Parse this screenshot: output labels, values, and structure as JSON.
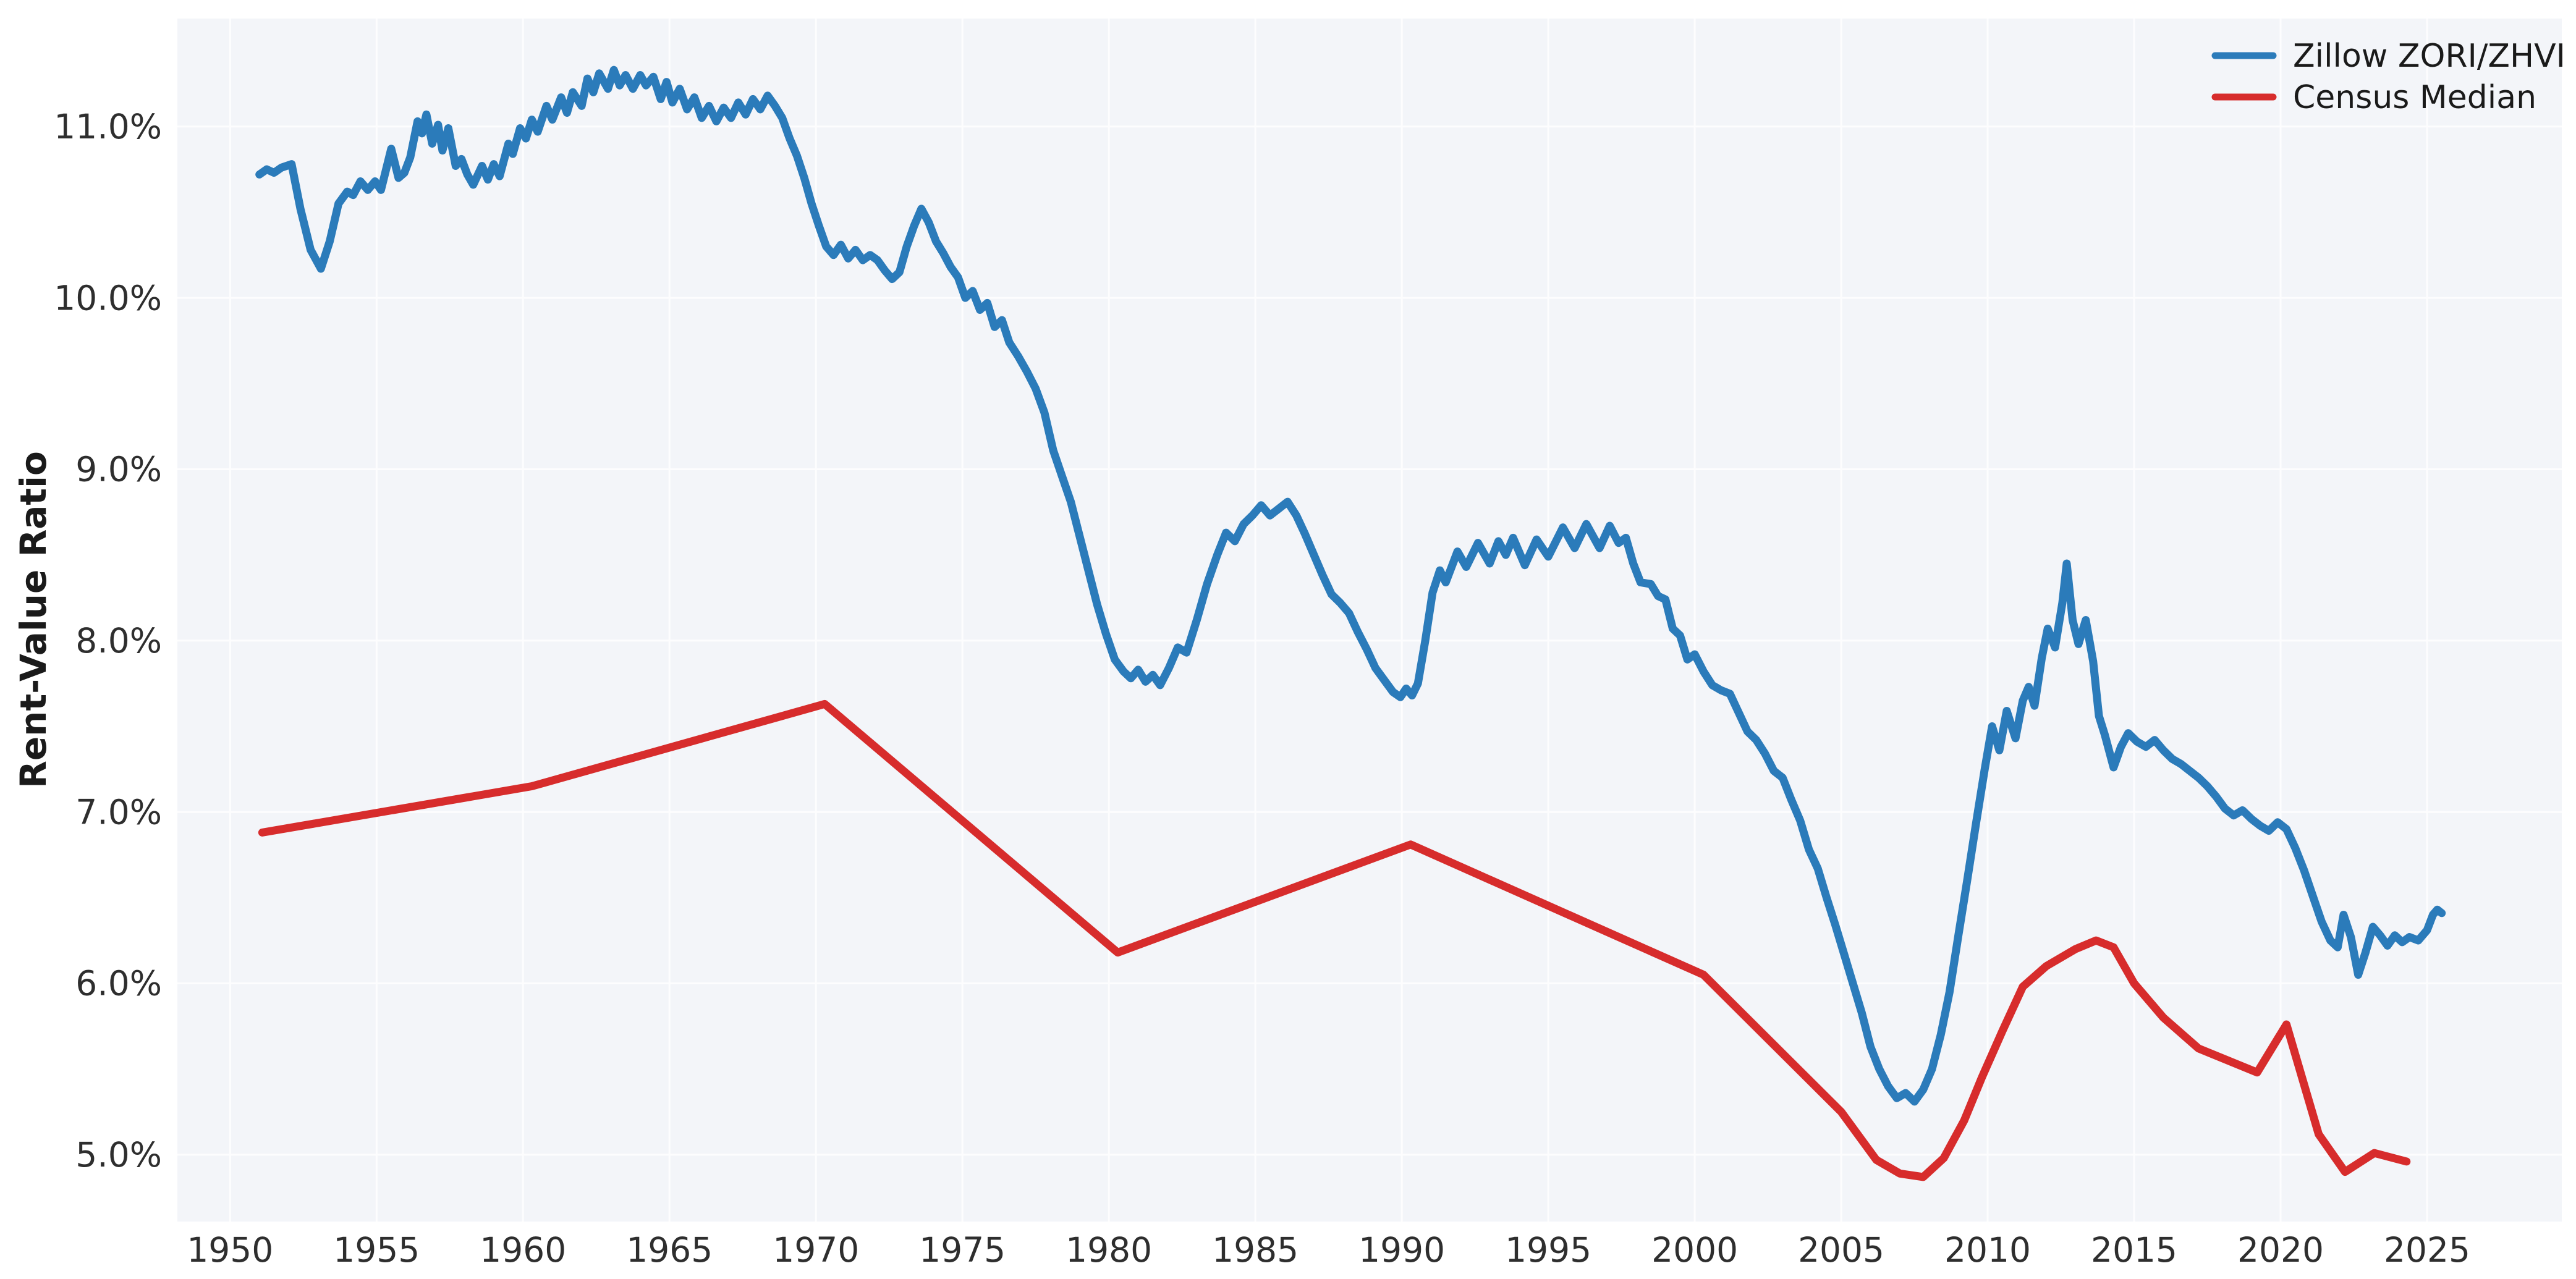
{
  "figure": {
    "ylabel": "Rent-Value Ratio",
    "background_color": "#ffffff",
    "plot_background_color": "#f3f5f9",
    "grid_color": "#ffffff",
    "tick_label_color": "#2e2e2e"
  },
  "legend": {
    "position": "upper-right",
    "items": [
      {
        "label": "Zillow ZORI/ZHVI",
        "color": "#2b7bba"
      },
      {
        "label": "Census Median",
        "color": "#d72c2c"
      }
    ]
  },
  "chart_data": {
    "type": "line",
    "title": "",
    "xlabel": "",
    "ylabel": "Rent-Value Ratio",
    "grid": true,
    "legend_position": "upper right",
    "xlim": [
      1948.2,
      2029.6
    ],
    "ylim": [
      4.61,
      11.63
    ],
    "x_tick_values": [
      1950,
      1955,
      1960,
      1965,
      1970,
      1975,
      1980,
      1985,
      1990,
      1995,
      2000,
      2005,
      2010,
      2015,
      2020,
      2025
    ],
    "x_tick_labels": [
      "1950",
      "1955",
      "1960",
      "1965",
      "1970",
      "1975",
      "1980",
      "1985",
      "1990",
      "1995",
      "2000",
      "2005",
      "2010",
      "2015",
      "2020",
      "2025"
    ],
    "y_tick_values": [
      5,
      6,
      7,
      8,
      9,
      10,
      11
    ],
    "y_tick_labels": [
      "5.0%",
      "6.0%",
      "7.0%",
      "8.0%",
      "9.0%",
      "10.0%",
      "11.0%"
    ],
    "series": [
      {
        "name": "Zillow ZORI/ZHVI",
        "color": "#2b7bba",
        "line_width": 13,
        "x": [
          1951.0,
          1951.25,
          1951.5,
          1951.75,
          1952.1,
          1952.4,
          1952.75,
          1953.1,
          1953.4,
          1953.7,
          1954.0,
          1954.2,
          1954.45,
          1954.7,
          1954.95,
          1955.15,
          1955.5,
          1955.75,
          1955.95,
          1956.15,
          1956.4,
          1956.55,
          1956.7,
          1956.9,
          1957.1,
          1957.25,
          1957.45,
          1957.7,
          1957.9,
          1958.1,
          1958.3,
          1958.6,
          1958.8,
          1959.0,
          1959.2,
          1959.5,
          1959.65,
          1959.9,
          1960.1,
          1960.3,
          1960.5,
          1960.8,
          1961.0,
          1961.3,
          1961.5,
          1961.7,
          1962.0,
          1962.2,
          1962.4,
          1962.6,
          1962.9,
          1963.1,
          1963.3,
          1963.5,
          1963.75,
          1964.0,
          1964.2,
          1964.45,
          1964.7,
          1964.9,
          1965.1,
          1965.35,
          1965.6,
          1965.85,
          1966.1,
          1966.35,
          1966.6,
          1966.85,
          1967.1,
          1967.35,
          1967.6,
          1967.85,
          1968.1,
          1968.35,
          1968.6,
          1968.85,
          1969.1,
          1969.35,
          1969.6,
          1969.85,
          1970.1,
          1970.35,
          1970.6,
          1970.85,
          1971.1,
          1971.35,
          1971.6,
          1971.85,
          1972.1,
          1972.35,
          1972.6,
          1972.85,
          1973.1,
          1973.35,
          1973.6,
          1973.85,
          1974.1,
          1974.35,
          1974.6,
          1974.85,
          1975.1,
          1975.35,
          1975.6,
          1975.85,
          1976.1,
          1976.35,
          1976.6,
          1976.9,
          1977.2,
          1977.5,
          1977.8,
          1978.1,
          1978.4,
          1978.7,
          1979.0,
          1979.3,
          1979.6,
          1979.9,
          1980.2,
          1980.5,
          1980.75,
          1981.0,
          1981.25,
          1981.5,
          1981.75,
          1982.05,
          1982.35,
          1982.65,
          1983.0,
          1983.35,
          1983.7,
          1984.0,
          1984.3,
          1984.6,
          1984.9,
          1985.2,
          1985.5,
          1985.8,
          1986.1,
          1986.4,
          1986.7,
          1987.0,
          1987.3,
          1987.6,
          1987.9,
          1988.2,
          1988.5,
          1988.8,
          1989.1,
          1989.4,
          1989.7,
          1989.95,
          1990.15,
          1990.35,
          1990.55,
          1990.8,
          1991.05,
          1991.3,
          1991.5,
          1991.9,
          1992.2,
          1992.6,
          1993.0,
          1993.3,
          1993.55,
          1993.8,
          1994.2,
          1994.6,
          1995.0,
          1995.5,
          1995.9,
          1996.3,
          1996.75,
          1997.1,
          1997.4,
          1997.65,
          1997.9,
          1998.15,
          1998.5,
          1998.75,
          1999.0,
          1999.25,
          1999.5,
          1999.75,
          2000.0,
          2000.3,
          2000.6,
          2000.9,
          2001.2,
          2001.5,
          2001.8,
          2002.1,
          2002.4,
          2002.7,
          2003.0,
          2003.3,
          2003.6,
          2003.9,
          2004.2,
          2004.5,
          2004.8,
          2005.1,
          2005.4,
          2005.7,
          2006.0,
          2006.3,
          2006.6,
          2006.9,
          2007.2,
          2007.5,
          2007.8,
          2008.1,
          2008.4,
          2008.7,
          2009.0,
          2009.3,
          2009.6,
          2009.9,
          2010.15,
          2010.4,
          2010.65,
          2010.95,
          2011.2,
          2011.4,
          2011.6,
          2011.85,
          2012.05,
          2012.3,
          2012.55,
          2012.7,
          2012.9,
          2013.1,
          2013.35,
          2013.6,
          2013.8,
          2014.0,
          2014.3,
          2014.55,
          2014.8,
          2015.1,
          2015.4,
          2015.7,
          2016.0,
          2016.3,
          2016.6,
          2016.9,
          2017.2,
          2017.5,
          2017.8,
          2018.1,
          2018.4,
          2018.7,
          2019.0,
          2019.3,
          2019.6,
          2019.9,
          2020.2,
          2020.5,
          2020.8,
          2021.1,
          2021.4,
          2021.7,
          2021.95,
          2022.15,
          2022.4,
          2022.65,
          2022.9,
          2023.15,
          2023.4,
          2023.65,
          2023.9,
          2024.15,
          2024.4,
          2024.7,
          2025.0,
          2025.2,
          2025.35,
          2025.5
        ],
        "y": [
          10.72,
          10.75,
          10.73,
          10.76,
          10.78,
          10.52,
          10.28,
          10.17,
          10.33,
          10.55,
          10.62,
          10.6,
          10.68,
          10.63,
          10.68,
          10.63,
          10.87,
          10.7,
          10.73,
          10.82,
          11.03,
          10.96,
          11.07,
          10.9,
          11.01,
          10.86,
          10.99,
          10.77,
          10.81,
          10.72,
          10.66,
          10.77,
          10.69,
          10.78,
          10.71,
          10.9,
          10.84,
          10.99,
          10.93,
          11.04,
          10.97,
          11.12,
          11.04,
          11.17,
          11.08,
          11.2,
          11.12,
          11.28,
          11.2,
          11.31,
          11.22,
          11.33,
          11.24,
          11.3,
          11.22,
          11.3,
          11.24,
          11.29,
          11.16,
          11.26,
          11.14,
          11.22,
          11.1,
          11.17,
          11.05,
          11.12,
          11.03,
          11.11,
          11.05,
          11.14,
          11.07,
          11.16,
          11.1,
          11.18,
          11.12,
          11.05,
          10.93,
          10.83,
          10.7,
          10.55,
          10.42,
          10.3,
          10.25,
          10.31,
          10.23,
          10.28,
          10.22,
          10.25,
          10.22,
          10.16,
          10.11,
          10.15,
          10.3,
          10.42,
          10.52,
          10.44,
          10.33,
          10.26,
          10.18,
          10.12,
          10.0,
          10.04,
          9.93,
          9.97,
          9.83,
          9.87,
          9.74,
          9.66,
          9.57,
          9.47,
          9.33,
          9.11,
          8.96,
          8.81,
          8.61,
          8.41,
          8.21,
          8.04,
          7.89,
          7.82,
          7.78,
          7.83,
          7.76,
          7.8,
          7.74,
          7.84,
          7.96,
          7.93,
          8.12,
          8.33,
          8.5,
          8.63,
          8.58,
          8.68,
          8.73,
          8.79,
          8.73,
          8.77,
          8.81,
          8.73,
          8.62,
          8.5,
          8.38,
          8.27,
          8.22,
          8.16,
          8.05,
          7.95,
          7.84,
          7.77,
          7.7,
          7.67,
          7.72,
          7.68,
          7.75,
          8.0,
          8.28,
          8.41,
          8.34,
          8.52,
          8.43,
          8.57,
          8.45,
          8.58,
          8.5,
          8.6,
          8.44,
          8.59,
          8.49,
          8.66,
          8.54,
          8.68,
          8.54,
          8.67,
          8.57,
          8.6,
          8.45,
          8.34,
          8.33,
          8.26,
          8.24,
          8.07,
          8.03,
          7.89,
          7.92,
          7.82,
          7.74,
          7.71,
          7.69,
          7.58,
          7.47,
          7.42,
          7.34,
          7.24,
          7.2,
          7.07,
          6.95,
          6.78,
          6.67,
          6.5,
          6.34,
          6.17,
          6.0,
          5.83,
          5.63,
          5.5,
          5.4,
          5.33,
          5.36,
          5.31,
          5.38,
          5.5,
          5.7,
          5.95,
          6.28,
          6.6,
          6.93,
          7.25,
          7.5,
          7.36,
          7.59,
          7.43,
          7.65,
          7.73,
          7.62,
          7.9,
          8.07,
          7.96,
          8.22,
          8.45,
          8.12,
          7.98,
          8.12,
          7.88,
          7.56,
          7.45,
          7.26,
          7.38,
          7.46,
          7.41,
          7.38,
          7.42,
          7.36,
          7.31,
          7.28,
          7.24,
          7.2,
          7.15,
          7.09,
          7.02,
          6.98,
          7.01,
          6.96,
          6.92,
          6.89,
          6.94,
          6.9,
          6.79,
          6.66,
          6.51,
          6.36,
          6.25,
          6.21,
          6.4,
          6.27,
          6.05,
          6.18,
          6.33,
          6.28,
          6.22,
          6.28,
          6.24,
          6.27,
          6.25,
          6.31,
          6.4,
          6.43,
          6.41
        ]
      },
      {
        "name": "Census Median",
        "color": "#d72c2c",
        "line_width": 13,
        "x": [
          1951.1,
          1960.3,
          1970.3,
          1980.3,
          1990.3,
          2000.3,
          2005.0,
          2006.2,
          2007.0,
          2007.8,
          2008.5,
          2009.2,
          2009.8,
          2010.5,
          2011.2,
          2012.0,
          2013.0,
          2013.7,
          2014.3,
          2015.0,
          2016.0,
          2017.2,
          2019.2,
          2020.2,
          2021.3,
          2022.2,
          2023.2,
          2024.3
        ],
        "y": [
          6.88,
          7.15,
          7.63,
          6.18,
          6.81,
          6.05,
          5.25,
          4.97,
          4.89,
          4.87,
          4.98,
          5.2,
          5.45,
          5.72,
          5.98,
          6.1,
          6.2,
          6.25,
          6.21,
          6.0,
          5.8,
          5.62,
          5.48,
          5.76,
          5.12,
          4.9,
          5.01,
          4.96
        ]
      }
    ]
  }
}
